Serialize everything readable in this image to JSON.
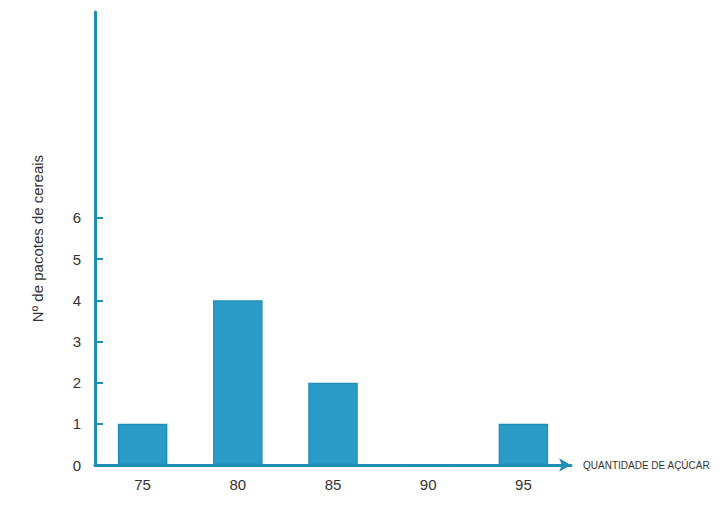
{
  "chart_data": {
    "type": "bar",
    "x_label": "QUANTIDADE DE AÇÚCAR",
    "y_label": "Nº de pacotes de cereais",
    "categories": [
      "75",
      "80",
      "85",
      "90",
      "95"
    ],
    "values": [
      1,
      4,
      2,
      0,
      1
    ],
    "color": "#2b9cc8",
    "ylim": [
      0,
      11
    ],
    "yticks": [
      0,
      1,
      2,
      3,
      4,
      5,
      6
    ],
    "grid": false
  }
}
